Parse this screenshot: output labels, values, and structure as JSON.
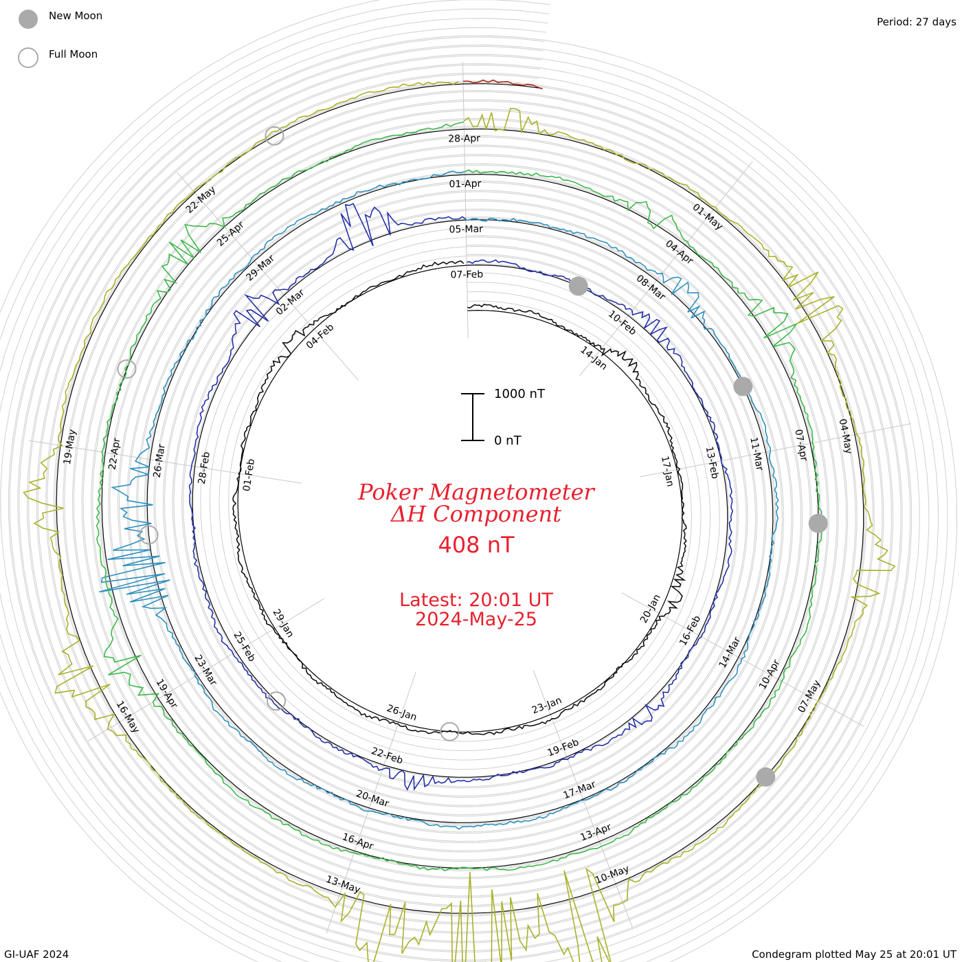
{
  "legend": {
    "new_moon_label": "New Moon",
    "full_moon_label": "Full Moon",
    "new_moon_color": "#aaaaaa",
    "full_moon_color": "#aaaaaa"
  },
  "header": {
    "period": "Period: 27 days"
  },
  "title": {
    "line1": "Poker Magnetometer",
    "line2": "ΔH Component",
    "value": "408 nT",
    "latest": "Latest: 20:01 UT",
    "date": "2024-May-25"
  },
  "scale_bar": {
    "top_label": "1000 nT",
    "bottom_label": "0 nT"
  },
  "footer": {
    "left": "GI-UAF 2024",
    "right": "Condegram plotted May 25 at 20:01 UT"
  },
  "chart_data": {
    "type": "line",
    "subtype": "condegram-spiral",
    "title": "Poker Magnetometer ΔH Component",
    "period_days": 27,
    "start_date": "2024-01-11",
    "end_date": "2024-05-25",
    "scale_nT": [
      0,
      1000
    ],
    "latest_value_nT": 408,
    "turns": [
      {
        "start": "2024-01-11",
        "color": "#111111"
      },
      {
        "start": "2024-02-07",
        "color": "#2330a8"
      },
      {
        "start": "2024-03-05",
        "color": "#2d8fbf"
      },
      {
        "start": "2024-04-01",
        "color": "#3cb848"
      },
      {
        "start": "2024-04-28",
        "color": "#a9b128"
      },
      {
        "start": "2024-05-25",
        "color": "#b22416"
      }
    ],
    "date_labels": [
      "14-Jan",
      "17-Jan",
      "20-Jan",
      "23-Jan",
      "26-Jan",
      "29-Jan",
      "01-Feb",
      "04-Feb",
      "07-Feb",
      "10-Feb",
      "13-Feb",
      "16-Feb",
      "19-Feb",
      "22-Feb",
      "25-Feb",
      "28-Feb",
      "02-Mar",
      "05-Mar",
      "08-Mar",
      "11-Mar",
      "14-Mar",
      "17-Mar",
      "20-Mar",
      "23-Mar",
      "26-Mar",
      "29-Mar",
      "01-Apr",
      "04-Apr",
      "07-Apr",
      "10-Apr",
      "13-Apr",
      "16-Apr",
      "19-Apr",
      "22-Apr",
      "25-Apr",
      "28-Apr",
      "01-May",
      "04-May",
      "07-May",
      "10-May",
      "13-May",
      "16-May",
      "19-May",
      "22-May"
    ],
    "new_moons": [
      "2024-02-09",
      "2024-03-10",
      "2024-04-08",
      "2024-05-08"
    ],
    "full_moons": [
      "2024-01-25",
      "2024-02-24",
      "2024-03-25",
      "2024-04-23",
      "2024-05-23"
    ],
    "disturbances": [
      {
        "date": "2024-01-14",
        "peak_nT": 350
      },
      {
        "date": "2024-01-19",
        "peak_nT": 250
      },
      {
        "date": "2024-02-03",
        "peak_nT": 220
      },
      {
        "date": "2024-02-10",
        "peak_nT": 300
      },
      {
        "date": "2024-02-17",
        "peak_nT": 280
      },
      {
        "date": "2024-02-21",
        "peak_nT": 300
      },
      {
        "date": "2024-03-01",
        "peak_nT": 650
      },
      {
        "date": "2024-03-03",
        "peak_nT": 900
      },
      {
        "date": "2024-03-08",
        "peak_nT": 450
      },
      {
        "date": "2024-03-24",
        "peak_nT": 1400
      },
      {
        "date": "2024-03-25",
        "peak_nT": 800
      },
      {
        "date": "2024-04-03",
        "peak_nT": 400
      },
      {
        "date": "2024-04-05",
        "peak_nT": 600
      },
      {
        "date": "2024-04-19",
        "peak_nT": 700
      },
      {
        "date": "2024-04-24",
        "peak_nT": 700
      },
      {
        "date": "2024-04-28",
        "peak_nT": 400
      },
      {
        "date": "2024-05-02",
        "peak_nT": 900
      },
      {
        "date": "2024-05-05",
        "peak_nT": 700
      },
      {
        "date": "2024-05-10",
        "peak_nT": 2200
      },
      {
        "date": "2024-05-11",
        "peak_nT": 2400
      },
      {
        "date": "2024-05-12",
        "peak_nT": 1300
      },
      {
        "date": "2024-05-16",
        "peak_nT": 900
      },
      {
        "date": "2024-05-18",
        "peak_nT": 700
      }
    ]
  }
}
